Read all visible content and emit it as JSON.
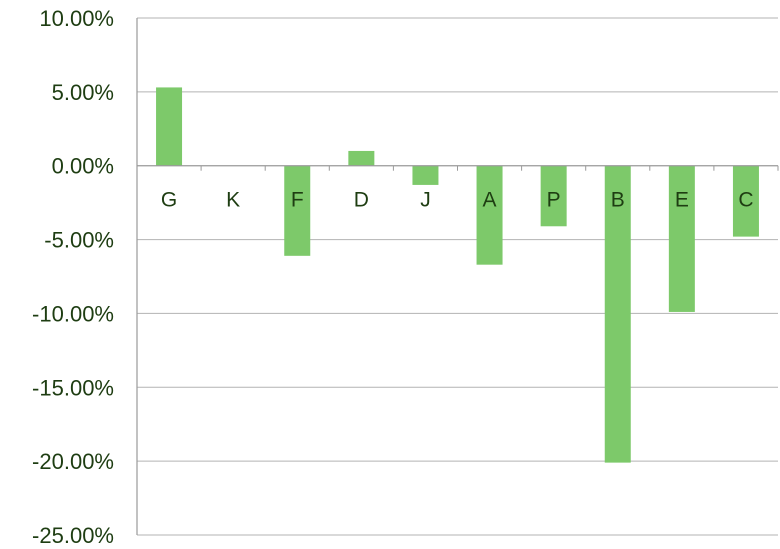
{
  "chart_data": {
    "type": "bar",
    "title": "",
    "xlabel": "",
    "ylabel": "",
    "categories": [
      "G",
      "K",
      "F",
      "D",
      "J",
      "A",
      "P",
      "B",
      "E",
      "C"
    ],
    "values": [
      5.3,
      0.0,
      -6.1,
      1.0,
      -1.3,
      -6.7,
      -4.1,
      -20.1,
      -9.9,
      -4.8
    ],
    "value_format": "percent",
    "ylim": [
      -25,
      10
    ],
    "yticks": [
      10,
      5,
      0,
      -5,
      -10,
      -15,
      -20,
      -25
    ],
    "ytick_labels": [
      "10.00%",
      "5.00%",
      "0.00%",
      "-5.00%",
      "-10.00%",
      "-15.00%",
      "-20.00%",
      "-25.00%"
    ],
    "grid": true,
    "legend": "none",
    "colors": {
      "bar": "#7dc96a",
      "grid": "#b3b3b3",
      "text": "#1e3d12",
      "axis": "#9a9a9a"
    }
  }
}
